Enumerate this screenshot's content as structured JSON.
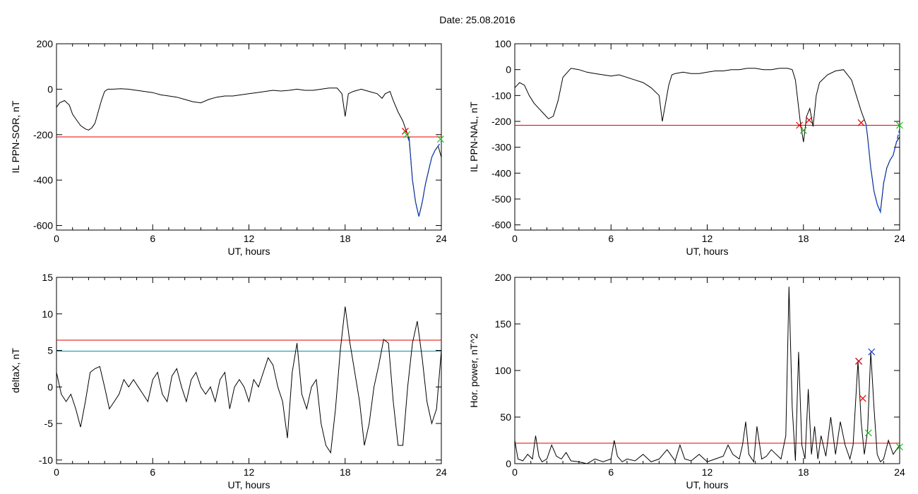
{
  "title": "Date:  25.08.2016",
  "colors": {
    "axis": "#000000",
    "data": "#000000",
    "threshold": "#e60000",
    "threshold2": "#008ca8",
    "blue_segment": "#1a4fd6",
    "green_marker": "#22bb22",
    "red_marker": "#dd0000",
    "blue_marker": "#2040c0"
  },
  "chart_data": [
    {
      "id": "panel1",
      "type": "line",
      "xlabel": "UT, hours",
      "ylabel": "IL PPN-SOR, nT",
      "xlim": [
        0,
        24
      ],
      "ylim": [
        -620,
        200
      ],
      "xticks": [
        0,
        6,
        12,
        18,
        24
      ],
      "yticks": [
        -600,
        -400,
        -200,
        0,
        200
      ],
      "thresholds": [
        {
          "y": -210,
          "color": "red"
        }
      ],
      "series": [
        {
          "x": [
            0,
            0.2,
            0.5,
            0.8,
            1.0,
            1.3,
            1.5,
            1.8,
            2.0,
            2.2,
            2.4,
            2.6,
            2.8,
            3.0,
            3.2,
            3.5,
            4.0,
            4.5,
            5.0,
            5.5,
            6.0,
            6.5,
            7.0,
            7.5,
            8.0,
            8.5,
            9.0,
            9.5,
            10.0,
            10.5,
            11.0,
            11.5,
            12.0,
            12.5,
            13.0,
            13.5,
            14.0,
            14.5,
            15.0,
            15.5,
            16.0,
            16.5,
            17.0,
            17.5,
            17.8,
            18.0,
            18.2,
            18.5,
            19.0,
            19.5,
            20.0,
            20.3,
            20.5,
            20.8,
            21.0,
            21.3,
            21.6,
            21.8,
            22.0,
            22.2,
            22.4,
            22.6,
            22.8,
            23.0,
            23.2,
            23.4,
            23.6,
            23.8,
            24.0
          ],
          "y": [
            -80,
            -60,
            -50,
            -70,
            -110,
            -140,
            -160,
            -175,
            -180,
            -170,
            -150,
            -100,
            -50,
            -10,
            0,
            0,
            2,
            0,
            -5,
            -10,
            -15,
            -25,
            -30,
            -35,
            -45,
            -55,
            -60,
            -45,
            -35,
            -30,
            -30,
            -25,
            -20,
            -15,
            -10,
            -5,
            -8,
            -5,
            0,
            -5,
            -5,
            0,
            5,
            5,
            -20,
            -120,
            -20,
            -10,
            0,
            -10,
            -20,
            -40,
            -20,
            -10,
            -50,
            -100,
            -140,
            -180,
            -220,
            -400,
            -500,
            -560,
            -500,
            -420,
            -360,
            -300,
            -270,
            -250,
            -300
          ]
        }
      ],
      "overlay": {
        "x": [
          21.9,
          22.0,
          22.2,
          22.4,
          22.6,
          22.8,
          23.0,
          23.2,
          23.4,
          23.6,
          23.8,
          24.0
        ],
        "y": [
          -210,
          -230,
          -400,
          -500,
          -560,
          -500,
          -420,
          -360,
          -300,
          -270,
          -250,
          -230
        ]
      },
      "markers": [
        {
          "x": 21.75,
          "y": -185,
          "color": "red",
          "symbol": "x"
        },
        {
          "x": 21.85,
          "y": -200,
          "color": "green",
          "symbol": "x"
        },
        {
          "x": 23.95,
          "y": -220,
          "color": "green",
          "symbol": "x"
        }
      ]
    },
    {
      "id": "panel2",
      "type": "line",
      "xlabel": "UT, hours",
      "ylabel": "IL PPN-NAL, nT",
      "xlim": [
        0,
        24
      ],
      "ylim": [
        -620,
        100
      ],
      "xticks": [
        0,
        6,
        12,
        18,
        24
      ],
      "yticks": [
        -600,
        -500,
        -400,
        -300,
        -200,
        -100,
        0,
        100
      ],
      "thresholds": [
        {
          "y": -215,
          "color": "red"
        }
      ],
      "series": [
        {
          "x": [
            0,
            0.3,
            0.6,
            0.9,
            1.2,
            1.5,
            1.8,
            2.1,
            2.4,
            2.7,
            3.0,
            3.5,
            4.0,
            4.5,
            5.0,
            5.5,
            6.0,
            6.5,
            7.0,
            7.5,
            8.0,
            8.5,
            9.0,
            9.2,
            9.4,
            9.6,
            9.8,
            10.0,
            10.5,
            11.0,
            11.5,
            12.0,
            12.5,
            13.0,
            13.5,
            14.0,
            14.5,
            15.0,
            15.5,
            16.0,
            16.5,
            17.0,
            17.3,
            17.5,
            17.8,
            18.0,
            18.2,
            18.4,
            18.6,
            18.8,
            19.0,
            19.5,
            20.0,
            20.5,
            21.0,
            21.3,
            21.6,
            21.9,
            22.0,
            22.2,
            22.4,
            22.6,
            22.8,
            23.0,
            23.2,
            23.4,
            23.6,
            23.8,
            24.0
          ],
          "y": [
            -70,
            -50,
            -60,
            -100,
            -130,
            -150,
            -170,
            -190,
            -180,
            -120,
            -30,
            5,
            0,
            -10,
            -15,
            -20,
            -25,
            -20,
            -30,
            -40,
            -50,
            -70,
            -100,
            -200,
            -130,
            -60,
            -20,
            -15,
            -10,
            -15,
            -15,
            -10,
            -5,
            -5,
            0,
            0,
            5,
            5,
            0,
            0,
            5,
            5,
            0,
            -40,
            -200,
            -280,
            -180,
            -150,
            -220,
            -100,
            -50,
            -20,
            -5,
            0,
            -40,
            -100,
            -160,
            -210,
            -260,
            -380,
            -470,
            -520,
            -550,
            -440,
            -380,
            -350,
            -330,
            -280,
            -260
          ]
        }
      ],
      "overlay": {
        "x": [
          21.9,
          22.0,
          22.2,
          22.4,
          22.6,
          22.8,
          23.0,
          23.2,
          23.4,
          23.6,
          23.8,
          24.0
        ],
        "y": [
          -210,
          -260,
          -380,
          -470,
          -520,
          -550,
          -440,
          -380,
          -350,
          -330,
          -280,
          -230
        ]
      },
      "markers": [
        {
          "x": 17.75,
          "y": -215,
          "color": "red",
          "symbol": "x"
        },
        {
          "x": 18.35,
          "y": -195,
          "color": "red",
          "symbol": "x"
        },
        {
          "x": 21.6,
          "y": -205,
          "color": "red",
          "symbol": "x"
        },
        {
          "x": 18.0,
          "y": -235,
          "color": "green",
          "symbol": "x"
        },
        {
          "x": 24.0,
          "y": -215,
          "color": "green",
          "symbol": "x"
        }
      ]
    },
    {
      "id": "panel3",
      "type": "line",
      "xlabel": "UT, hours",
      "ylabel": "deltaX, nT",
      "xlim": [
        0,
        24
      ],
      "ylim": [
        -10.5,
        15
      ],
      "xticks": [
        0,
        6,
        12,
        18,
        24
      ],
      "yticks": [
        -10,
        -5,
        0,
        5,
        10,
        15
      ],
      "thresholds": [
        {
          "y": 6.4,
          "color": "red"
        },
        {
          "y": 4.9,
          "color": "teal"
        }
      ],
      "series": [
        {
          "x": [
            0,
            0.3,
            0.6,
            0.9,
            1.2,
            1.5,
            1.8,
            2.1,
            2.4,
            2.7,
            3.0,
            3.3,
            3.6,
            3.9,
            4.2,
            4.5,
            4.8,
            5.1,
            5.4,
            5.7,
            6.0,
            6.3,
            6.6,
            6.9,
            7.2,
            7.5,
            7.8,
            8.1,
            8.4,
            8.7,
            9.0,
            9.3,
            9.6,
            9.9,
            10.2,
            10.5,
            10.8,
            11.1,
            11.4,
            11.7,
            12.0,
            12.3,
            12.6,
            12.9,
            13.2,
            13.5,
            13.8,
            14.1,
            14.4,
            14.7,
            15.0,
            15.3,
            15.6,
            15.9,
            16.2,
            16.5,
            16.8,
            17.1,
            17.4,
            17.7,
            18.0,
            18.3,
            18.6,
            18.9,
            19.2,
            19.5,
            19.8,
            20.1,
            20.4,
            20.7,
            21.0,
            21.3,
            21.6,
            21.9,
            22.2,
            22.5,
            22.8,
            23.1,
            23.4,
            23.7,
            24.0
          ],
          "y": [
            2,
            -1,
            -2,
            -1,
            -3,
            -5.5,
            -2,
            2,
            2.5,
            2.8,
            0,
            -3,
            -2,
            -1,
            1,
            0,
            1,
            0,
            -1,
            -2,
            1,
            2,
            -1,
            -2,
            1.5,
            2.5,
            0,
            -2,
            1,
            2,
            0,
            -1,
            0,
            -2,
            1,
            2,
            -3,
            0,
            1,
            0,
            -2,
            1,
            0,
            2,
            4,
            3,
            0,
            -2,
            -7,
            2,
            6,
            -1,
            -3,
            0,
            1,
            -5,
            -8,
            -9,
            -3,
            5,
            11,
            6,
            2,
            -2,
            -8,
            -5,
            0,
            3,
            6.5,
            6,
            -2,
            -8,
            -8,
            0,
            6,
            9,
            4,
            -2,
            -5,
            -3,
            5
          ]
        }
      ],
      "markers": []
    },
    {
      "id": "panel4",
      "type": "line",
      "xlabel": "UT, hours",
      "ylabel": "Hor. power, nT^2",
      "xlim": [
        0,
        24
      ],
      "ylim": [
        0,
        200
      ],
      "xticks": [
        0,
        6,
        12,
        18,
        24
      ],
      "yticks": [
        0,
        50,
        100,
        150,
        200
      ],
      "thresholds": [
        {
          "y": 22,
          "color": "red"
        }
      ],
      "series": [
        {
          "x": [
            0,
            0.2,
            0.5,
            0.8,
            1.1,
            1.3,
            1.5,
            1.7,
            2.0,
            2.3,
            2.6,
            2.9,
            3.2,
            3.5,
            4.0,
            4.5,
            5.0,
            5.5,
            6.0,
            6.2,
            6.4,
            6.7,
            7.0,
            7.5,
            8.0,
            8.5,
            9.0,
            9.5,
            10.0,
            10.3,
            10.6,
            11.0,
            11.5,
            12.0,
            12.5,
            13.0,
            13.3,
            13.6,
            14.0,
            14.2,
            14.4,
            14.6,
            14.9,
            15.1,
            15.4,
            15.7,
            16.0,
            16.3,
            16.6,
            16.9,
            17.1,
            17.3,
            17.5,
            17.7,
            17.9,
            18.1,
            18.3,
            18.5,
            18.7,
            18.9,
            19.1,
            19.4,
            19.7,
            20.0,
            20.3,
            20.6,
            20.9,
            21.1,
            21.4,
            21.6,
            21.8,
            22.0,
            22.2,
            22.4,
            22.6,
            22.8,
            23.0,
            23.3,
            23.6,
            24.0
          ],
          "y": [
            25,
            5,
            3,
            10,
            5,
            30,
            8,
            2,
            5,
            20,
            8,
            5,
            12,
            3,
            2,
            0,
            5,
            2,
            5,
            25,
            8,
            2,
            5,
            3,
            10,
            2,
            5,
            15,
            3,
            20,
            5,
            3,
            10,
            2,
            5,
            8,
            20,
            10,
            5,
            20,
            45,
            10,
            2,
            40,
            5,
            8,
            15,
            10,
            5,
            30,
            190,
            60,
            3,
            120,
            20,
            5,
            80,
            10,
            40,
            5,
            30,
            8,
            50,
            10,
            45,
            20,
            5,
            20,
            110,
            45,
            10,
            35,
            120,
            60,
            10,
            2,
            5,
            25,
            10,
            20
          ]
        }
      ],
      "markers": [
        {
          "x": 21.45,
          "y": 110,
          "color": "blue",
          "symbol": "x"
        },
        {
          "x": 21.45,
          "y": 110,
          "color": "red",
          "symbol": "x"
        },
        {
          "x": 22.25,
          "y": 120,
          "color": "blue",
          "symbol": "x"
        },
        {
          "x": 21.7,
          "y": 70,
          "color": "red",
          "symbol": "x"
        },
        {
          "x": 22.05,
          "y": 33,
          "color": "green",
          "symbol": "x"
        },
        {
          "x": 24.0,
          "y": 18,
          "color": "green",
          "symbol": "x"
        }
      ]
    }
  ]
}
